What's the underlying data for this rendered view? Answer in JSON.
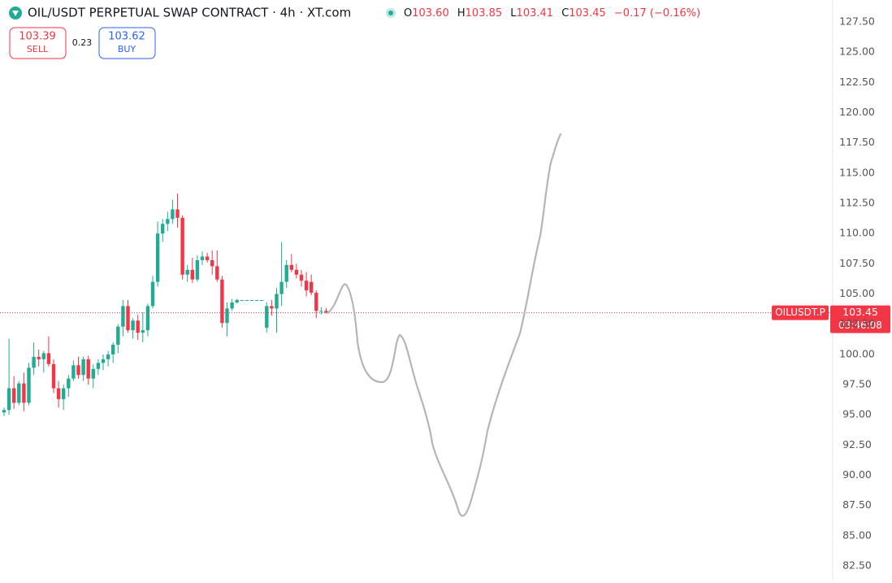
{
  "chart_data": {
    "type": "candlestick",
    "title": "OIL/USDT PERPETUAL SWAP CONTRACT · 4h · XT.com",
    "ohlc_header": {
      "open_label": "O",
      "open": "103.60",
      "high_label": "H",
      "high": "103.85",
      "low_label": "L",
      "low": "103.41",
      "close_label": "C",
      "close": "103.45",
      "change": "−0.17 (−0.16%)"
    },
    "trade_panel": {
      "sell_price": "103.39",
      "sell_label": "SELL",
      "spread": "0.23",
      "buy_price": "103.62",
      "buy_label": "BUY"
    },
    "price_tag": {
      "symbol": "OILUSDT.P",
      "price": "103.45",
      "countdown": "03:46:08"
    },
    "up_color": "#22ab94",
    "down_color": "#f23645",
    "ylim": [
      81.36,
      129.32
    ],
    "yticks": [
      {
        "value": 82.5,
        "label": "82.50"
      },
      {
        "value": 85,
        "label": "85.00"
      },
      {
        "value": 87.5,
        "label": "87.50"
      },
      {
        "value": 90,
        "label": "90.00"
      },
      {
        "value": 92.5,
        "label": "92.50"
      },
      {
        "value": 95,
        "label": "95.00"
      },
      {
        "value": 97.5,
        "label": "97.50"
      },
      {
        "value": 100,
        "label": "100.00"
      },
      {
        "value": 102.5,
        "label": "102.50"
      },
      {
        "value": 105,
        "label": "105.00"
      },
      {
        "value": 107.5,
        "label": "107.50"
      },
      {
        "value": 110,
        "label": "110.00"
      },
      {
        "value": 112.5,
        "label": "112.50"
      },
      {
        "value": 115,
        "label": "115.00"
      },
      {
        "value": 117.5,
        "label": "117.50"
      },
      {
        "value": 120,
        "label": "120.00"
      },
      {
        "value": 122.5,
        "label": "122.50"
      },
      {
        "value": 125,
        "label": "125.00"
      },
      {
        "value": 127.5,
        "label": "127.50"
      }
    ],
    "open": [
      95.2,
      95.4,
      97.2,
      96.0,
      97.6,
      96.0,
      98.9,
      99.8,
      99.6,
      100.1,
      99.2,
      97.2,
      96.3,
      97.2,
      98.0,
      99.1,
      98.3,
      99.6,
      98.0,
      98.8,
      99.3,
      99.6,
      100.0,
      100.8,
      102.3,
      104.0,
      102.0,
      102.8,
      101.8,
      102.0,
      104.0,
      106.0,
      110.0,
      110.8,
      111.2,
      112.0,
      111.3,
      106.6,
      107.0,
      106.2,
      107.8,
      108.1,
      107.8,
      107.3,
      106.2,
      102.6,
      103.8,
      104.3,
      104.5,
      104.5,
      104.5,
      104.5,
      104.5,
      102.2,
      104.0,
      103.8,
      105.0,
      106.0,
      107.4,
      107.0,
      106.6,
      106.1,
      106.0,
      105.1,
      103.6,
      103.6
    ],
    "high": [
      95.6,
      101.3,
      98.2,
      97.8,
      98.5,
      99.3,
      101.0,
      100.4,
      100.3,
      101.5,
      99.6,
      97.8,
      97.5,
      98.3,
      99.5,
      99.8,
      99.8,
      99.9,
      99.2,
      99.6,
      100.0,
      100.3,
      101.0,
      102.5,
      104.5,
      104.5,
      103.0,
      103.3,
      103.5,
      104.2,
      106.5,
      111.0,
      111.2,
      111.8,
      112.8,
      113.3,
      111.5,
      107.4,
      108.0,
      108.2,
      108.5,
      108.4,
      108.6,
      108.6,
      106.5,
      104.3,
      104.6,
      104.6,
      104.5,
      104.5,
      104.5,
      104.5,
      104.5,
      104.3,
      104.5,
      105.5,
      109.3,
      107.8,
      108.3,
      107.5,
      107.0,
      106.8,
      106.6,
      105.3,
      103.9,
      103.85
    ],
    "low": [
      94.9,
      95.0,
      95.5,
      95.8,
      95.3,
      95.8,
      98.3,
      99.0,
      98.5,
      99.0,
      96.8,
      95.6,
      95.4,
      96.5,
      97.8,
      98.0,
      97.8,
      97.5,
      97.2,
      98.3,
      98.7,
      99.0,
      99.3,
      100.1,
      101.5,
      101.8,
      101.3,
      101.2,
      101.0,
      101.5,
      103.8,
      105.6,
      109.3,
      110.2,
      110.8,
      110.5,
      106.2,
      106.0,
      105.9,
      106.0,
      107.4,
      107.6,
      106.6,
      106.0,
      102.2,
      101.5,
      103.6,
      104.2,
      104.5,
      104.5,
      104.5,
      104.5,
      104.5,
      101.8,
      103.2,
      101.8,
      104.0,
      105.5,
      106.8,
      106.3,
      105.6,
      104.8,
      104.9,
      103.0,
      103.3,
      103.41
    ],
    "close": [
      95.4,
      97.2,
      96.0,
      97.6,
      96.0,
      98.9,
      99.8,
      99.6,
      100.1,
      99.2,
      97.2,
      96.3,
      97.2,
      98.0,
      99.1,
      98.3,
      99.6,
      98.0,
      98.8,
      99.3,
      99.6,
      100.0,
      100.8,
      102.3,
      104.0,
      102.0,
      102.8,
      101.8,
      102.0,
      104.0,
      106.0,
      110.0,
      110.8,
      111.2,
      112.0,
      111.3,
      106.6,
      107.0,
      106.2,
      107.8,
      108.1,
      107.8,
      107.3,
      106.2,
      102.6,
      103.8,
      104.3,
      104.5,
      104.5,
      104.5,
      104.5,
      104.5,
      104.5,
      104.0,
      103.8,
      105.0,
      106.0,
      107.4,
      107.0,
      106.6,
      106.1,
      105.3,
      105.1,
      103.6,
      103.6,
      103.45
    ]
  }
}
